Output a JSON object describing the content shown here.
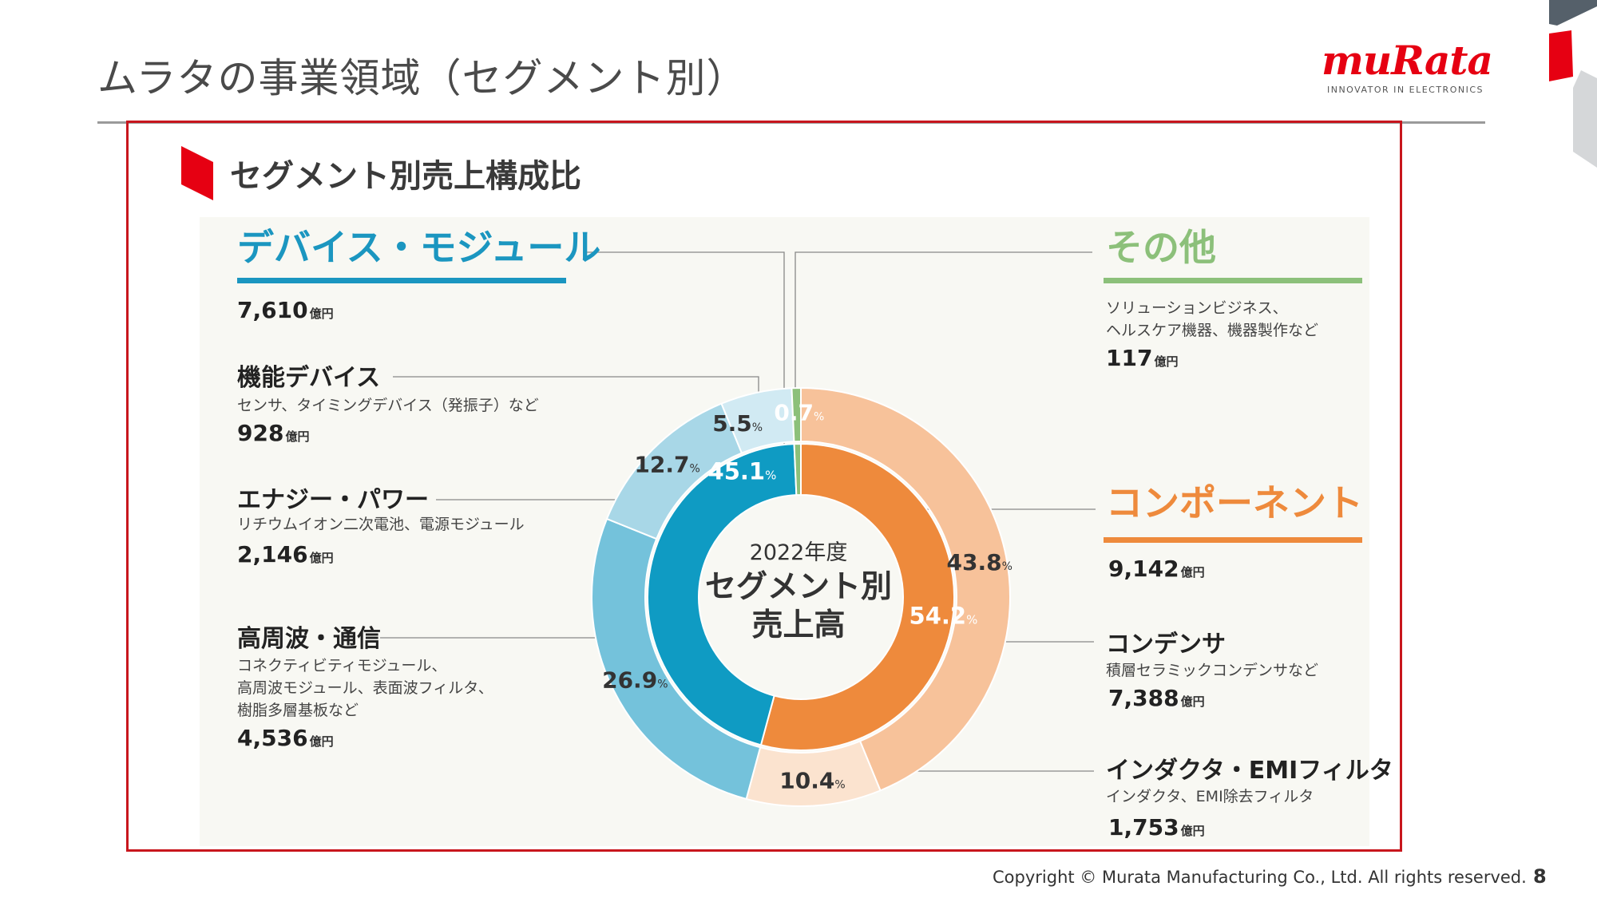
{
  "page": {
    "title": "ムラタの事業領域（セグメント別）",
    "logo_word": "muRata",
    "logo_tagline": "INNOVATOR IN ELECTRONICS",
    "section_title": "セグメント別売上構成比",
    "copyright": "Copyright © Murata Manufacturing Co., Ltd. All rights reserved.",
    "page_number": "8",
    "colors": {
      "brand_red": "#e60012",
      "frame_red": "#c8161d"
    }
  },
  "center": {
    "year": "2022年度",
    "title_line1": "セグメント別",
    "title_line2": "売上高"
  },
  "unit_label": "億円",
  "categories": {
    "devices": {
      "heading": "デバイス・モジュール",
      "total": "7,610",
      "color": "#1b96c0",
      "subs": [
        {
          "name": "機能デバイス",
          "desc": [
            "センサ、タイミングデバイス（発振子）など"
          ],
          "value": "928"
        },
        {
          "name": "エナジー・パワー",
          "desc": [
            "リチウムイオン二次電池、電源モジュール"
          ],
          "value": "2,146"
        },
        {
          "name": "高周波・通信",
          "desc": [
            "コネクティビティモジュール、",
            "高周波モジュール、表面波フィルタ、",
            "樹脂多層基板など"
          ],
          "value": "4,536"
        }
      ]
    },
    "other": {
      "heading": "その他",
      "desc": [
        "ソリューションビジネス、",
        "ヘルスケア機器、機器製作など"
      ],
      "total": "117",
      "color": "#8cc07a"
    },
    "components": {
      "heading": "コンポーネント",
      "total": "9,142",
      "color": "#ee8a3c",
      "subs": [
        {
          "name": "コンデンサ",
          "desc": [
            "積層セラミックコンデンサなど"
          ],
          "value": "7,388"
        },
        {
          "name": "インダクタ・EMIフィルタ",
          "desc": [
            "インダクタ、EMI除去フィルタ"
          ],
          "value": "1,753"
        }
      ]
    }
  },
  "chart_data": {
    "type": "pie",
    "subtype": "nested-donut",
    "title": "セグメント別売上高",
    "value_suffix": "%",
    "inner_ring": [
      {
        "name": "コンポーネント",
        "value": 54.2,
        "label": "54.2",
        "color": "#ee8a3c"
      },
      {
        "name": "デバイス・モジュール",
        "value": 45.1,
        "label": "45.1",
        "color": "#0f9bc3"
      },
      {
        "name": "その他",
        "value": 0.7,
        "label": "",
        "color": "#8cc07a"
      }
    ],
    "outer_ring": [
      {
        "name": "コンデンサ",
        "value": 43.8,
        "label": "43.8",
        "color": "#f7c29a"
      },
      {
        "name": "インダクタ・EMIフィルタ",
        "value": 10.4,
        "label": "10.4",
        "color": "#fbe3cf"
      },
      {
        "name": "高周波・通信",
        "value": 26.9,
        "label": "26.9",
        "color": "#74c2db"
      },
      {
        "name": "エナジー・パワー",
        "value": 12.7,
        "label": "12.7",
        "color": "#a8d7e7"
      },
      {
        "name": "機能デバイス",
        "value": 5.5,
        "label": "5.5",
        "color": "#d1eaf3"
      },
      {
        "name": "その他",
        "value": 0.7,
        "label": "0.7",
        "color": "#8cc07a"
      }
    ]
  }
}
